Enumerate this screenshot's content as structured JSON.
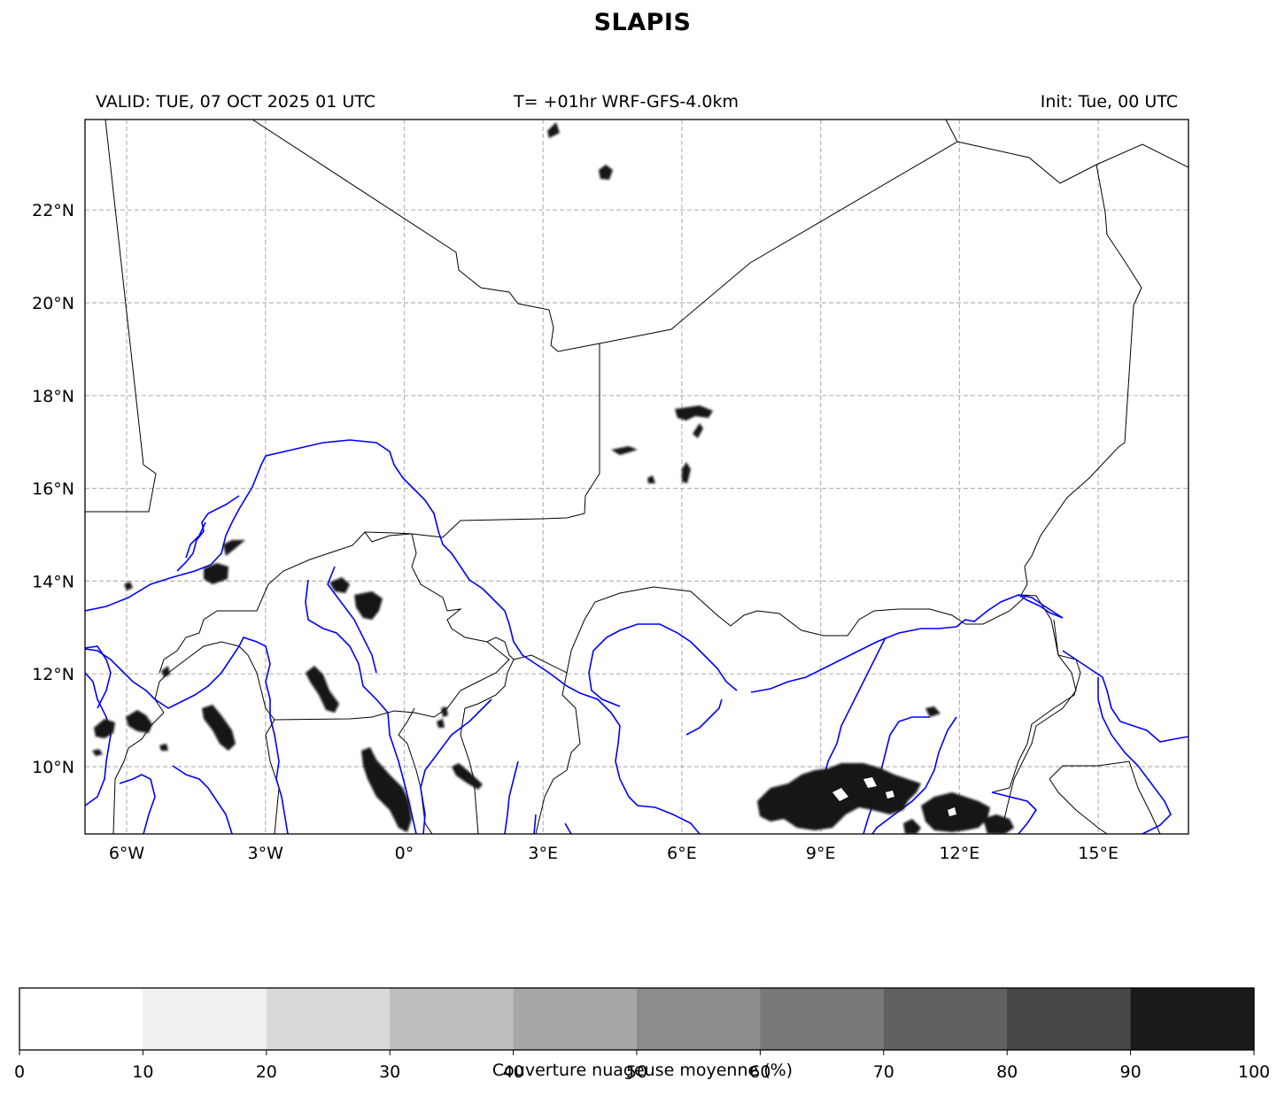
{
  "title": "SLAPIS",
  "subtitle": {
    "left": "VALID: TUE, 07 OCT 2025 01 UTC",
    "center": "T= +01hr WRF-GFS-4.0km",
    "right": "Init: Tue, 00 UTC"
  },
  "map": {
    "lon_range": [
      -6.9,
      16.95
    ],
    "lat_range": [
      8.55,
      23.95
    ],
    "lon_ticks": [
      {
        "value": -6,
        "label": "6°W"
      },
      {
        "value": -3,
        "label": "3°W"
      },
      {
        "value": 0,
        "label": "0°"
      },
      {
        "value": 3,
        "label": "3°E"
      },
      {
        "value": 6,
        "label": "6°E"
      },
      {
        "value": 9,
        "label": "9°E"
      },
      {
        "value": 12,
        "label": "12°E"
      },
      {
        "value": 15,
        "label": "15°E"
      }
    ],
    "lat_ticks": [
      {
        "value": 10,
        "label": "10°N"
      },
      {
        "value": 12,
        "label": "12°N"
      },
      {
        "value": 14,
        "label": "14°N"
      },
      {
        "value": 16,
        "label": "16°N"
      },
      {
        "value": 18,
        "label": "18°N"
      },
      {
        "value": 20,
        "label": "20°N"
      },
      {
        "value": 22,
        "label": "22°N"
      }
    ],
    "gridlines": true,
    "border_color": "#000000",
    "river_color": "#0000ff",
    "cloud_color": "#151515"
  },
  "colorbar": {
    "label": "Couverture nuageuse moyenne (%)",
    "ticks": [
      "0",
      "10",
      "20",
      "30",
      "40",
      "50",
      "60",
      "70",
      "80",
      "90",
      "100"
    ],
    "colors": [
      "#ffffff",
      "#f0f0f0",
      "#d9d9d9",
      "#bdbdbd",
      "#a6a6a6",
      "#8c8c8c",
      "#787878",
      "#616161",
      "#474747",
      "#1a1a1a"
    ]
  }
}
